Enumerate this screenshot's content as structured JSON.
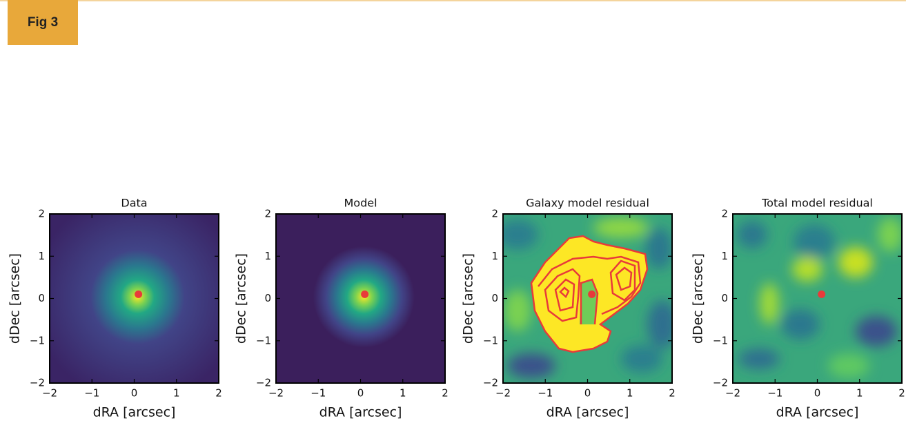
{
  "figure_label": "Fig 3",
  "chart_data": [
    {
      "type": "image",
      "title": "Data",
      "xlabel": "dRA [arcsec]",
      "ylabel": "dDec [arcsec]",
      "xlim": [
        -2,
        2
      ],
      "ylim": [
        -2,
        2
      ],
      "xticks": [
        {
          "value": -2,
          "label": "−2"
        },
        {
          "value": -1,
          "label": "−1"
        },
        0,
        1,
        2
      ],
      "yticks": [
        {
          "value": -2,
          "label": "−2"
        },
        {
          "value": -1,
          "label": "−1"
        },
        0,
        1,
        2
      ],
      "points": {
        "x": [
          0.1
        ],
        "y": [
          0.1
        ],
        "color": "#e83a3a"
      }
    },
    {
      "type": "image",
      "title": "Model",
      "xlabel": "dRA [arcsec]",
      "ylabel": "dDec [arcsec]",
      "xlim": [
        -2,
        2
      ],
      "ylim": [
        -2,
        2
      ],
      "xticks": [
        {
          "value": -2,
          "label": "−2"
        },
        {
          "value": -1,
          "label": "−1"
        },
        0,
        1,
        2
      ],
      "yticks": [
        {
          "value": -2,
          "label": "−2"
        },
        {
          "value": -1,
          "label": "−1"
        },
        0,
        1,
        2
      ],
      "points": {
        "x": [
          0.1
        ],
        "y": [
          0.1
        ],
        "color": "#e83a3a"
      }
    },
    {
      "type": "image",
      "title": "Galaxy model residual",
      "xlabel": "dRA [arcsec]",
      "ylabel": "dDec [arcsec]",
      "xlim": [
        -2,
        2
      ],
      "ylim": [
        -2,
        2
      ],
      "xticks": [
        {
          "value": -2,
          "label": "−2"
        },
        {
          "value": -1,
          "label": "−1"
        },
        0,
        1,
        2
      ],
      "yticks": [
        {
          "value": -2,
          "label": "−2"
        },
        {
          "value": -1,
          "label": "−1"
        },
        0,
        1,
        2
      ],
      "points": {
        "x": [
          0.1
        ],
        "y": [
          0.1
        ],
        "color": "#e83a3a"
      }
    },
    {
      "type": "image",
      "title": "Total model residual",
      "xlabel": "dRA [arcsec]",
      "ylabel": "dDec [arcsec]",
      "xlim": [
        -2,
        2
      ],
      "ylim": [
        -2,
        2
      ],
      "xticks": [
        {
          "value": -2,
          "label": "−2"
        },
        {
          "value": -1,
          "label": "−1"
        },
        0,
        1,
        2
      ],
      "yticks": [
        {
          "value": -2,
          "label": "−2"
        },
        {
          "value": -1,
          "label": "−1"
        },
        0,
        1,
        2
      ],
      "points": {
        "x": [
          0.1
        ],
        "y": [
          0.1
        ],
        "color": "#e83a3a"
      }
    }
  ]
}
